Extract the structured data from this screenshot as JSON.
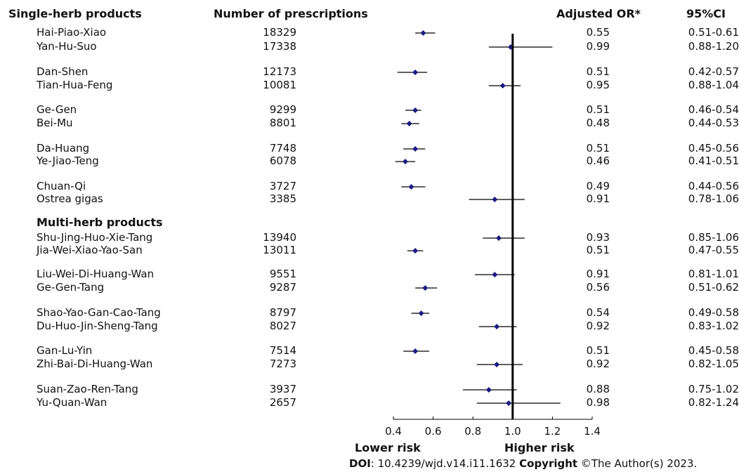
{
  "headers": {
    "group1": "Single-herb products",
    "prescriptions": "Number of prescriptions",
    "or": "Adjusted OR*",
    "ci": "95%CI"
  },
  "group2_title": "Multi-herb products",
  "axis": {
    "ticks": [
      "0.4",
      "0.6",
      "0.8",
      "1.0",
      "1.2",
      "1.4"
    ],
    "lower_label": "Lower risk",
    "higher_label": "Higher risk"
  },
  "footer": {
    "doi_label": "DOI",
    "doi_text": ": 10.4239/wjd.v14.i11.1632 ",
    "copyright_label": "Copyright",
    "copyright_text": " ©The Author(s) 2023."
  },
  "colors": {
    "marker": "#1a1a80",
    "line": "#000000"
  },
  "chart_data": {
    "type": "forest",
    "xlim": [
      0.4,
      1.4
    ],
    "reference_line": 1.0,
    "groups": [
      {
        "name": "Single-herb products",
        "rows": [
          {
            "label": "Hai-Piao-Xiao",
            "n": "18329",
            "or": 0.55,
            "lo": 0.51,
            "hi": 0.61,
            "or_text": "0.55",
            "ci_text": "0.51-0.61"
          },
          {
            "label": "Yan-Hu-Suo",
            "n": "17338",
            "or": 0.99,
            "lo": 0.88,
            "hi": 1.2,
            "or_text": "0.99",
            "ci_text": "0.88-1.20"
          },
          {
            "label": "Dan-Shen",
            "n": "12173",
            "or": 0.51,
            "lo": 0.42,
            "hi": 0.57,
            "or_text": "0.51",
            "ci_text": "0.42-0.57"
          },
          {
            "label": "Tian-Hua-Feng",
            "n": "10081",
            "or": 0.95,
            "lo": 0.88,
            "hi": 1.04,
            "or_text": "0.95",
            "ci_text": "0.88-1.04"
          },
          {
            "label": "Ge-Gen",
            "n": "9299",
            "or": 0.51,
            "lo": 0.46,
            "hi": 0.54,
            "or_text": "0.51",
            "ci_text": "0.46-0.54"
          },
          {
            "label": "Bei-Mu",
            "n": "8801",
            "or": 0.48,
            "lo": 0.44,
            "hi": 0.53,
            "or_text": "0.48",
            "ci_text": "0.44-0.53"
          },
          {
            "label": "Da-Huang",
            "n": "7748",
            "or": 0.51,
            "lo": 0.45,
            "hi": 0.56,
            "or_text": "0.51",
            "ci_text": "0.45-0.56"
          },
          {
            "label": "Ye-Jiao-Teng",
            "n": "6078",
            "or": 0.46,
            "lo": 0.41,
            "hi": 0.51,
            "or_text": "0.46",
            "ci_text": "0.41-0.51"
          },
          {
            "label": "Chuan-Qi",
            "n": "3727",
            "or": 0.49,
            "lo": 0.44,
            "hi": 0.56,
            "or_text": "0.49",
            "ci_text": "0.44-0.56"
          },
          {
            "label": "Ostrea gigas",
            "n": "3385",
            "or": 0.91,
            "lo": 0.78,
            "hi": 1.06,
            "or_text": "0.91",
            "ci_text": "0.78-1.06"
          }
        ]
      },
      {
        "name": "Multi-herb products",
        "rows": [
          {
            "label": "Shu-Jing-Huo-Xie-Tang",
            "n": "13940",
            "or": 0.93,
            "lo": 0.85,
            "hi": 1.06,
            "or_text": "0.93",
            "ci_text": "0.85-1.06"
          },
          {
            "label": "Jia-Wei-Xiao-Yao-San",
            "n": "13011",
            "or": 0.51,
            "lo": 0.47,
            "hi": 0.55,
            "or_text": "0.51",
            "ci_text": "0.47-0.55"
          },
          {
            "label": "Liu-Wei-Di-Huang-Wan",
            "n": "9551",
            "or": 0.91,
            "lo": 0.81,
            "hi": 1.01,
            "or_text": "0.91",
            "ci_text": "0.81-1.01"
          },
          {
            "label": "Ge-Gen-Tang",
            "n": "9287",
            "or": 0.56,
            "lo": 0.51,
            "hi": 0.62,
            "or_text": "0.56",
            "ci_text": "0.51-0.62"
          },
          {
            "label": "Shao-Yao-Gan-Cao-Tang",
            "n": "8797",
            "or": 0.54,
            "lo": 0.49,
            "hi": 0.58,
            "or_text": "0.54",
            "ci_text": "0.49-0.58"
          },
          {
            "label": "Du-Huo-Jin-Sheng-Tang",
            "n": "8027",
            "or": 0.92,
            "lo": 0.83,
            "hi": 1.02,
            "or_text": "0.92",
            "ci_text": "0.83-1.02"
          },
          {
            "label": "Gan-Lu-Yin",
            "n": "7514",
            "or": 0.51,
            "lo": 0.45,
            "hi": 0.58,
            "or_text": "0.51",
            "ci_text": "0.45-0.58"
          },
          {
            "label": "Zhi-Bai-Di-Huang-Wan",
            "n": "7273",
            "or": 0.92,
            "lo": 0.82,
            "hi": 1.05,
            "or_text": "0.92",
            "ci_text": "0.82-1.05"
          },
          {
            "label": "Suan-Zao-Ren-Tang",
            "n": "3937",
            "or": 0.88,
            "lo": 0.75,
            "hi": 1.02,
            "or_text": "0.88",
            "ci_text": "0.75-1.02"
          },
          {
            "label": "Yu-Quan-Wan",
            "n": "2657",
            "or": 0.98,
            "lo": 0.82,
            "hi": 1.24,
            "or_text": "0.98",
            "ci_text": "0.82-1.24"
          }
        ]
      }
    ]
  }
}
